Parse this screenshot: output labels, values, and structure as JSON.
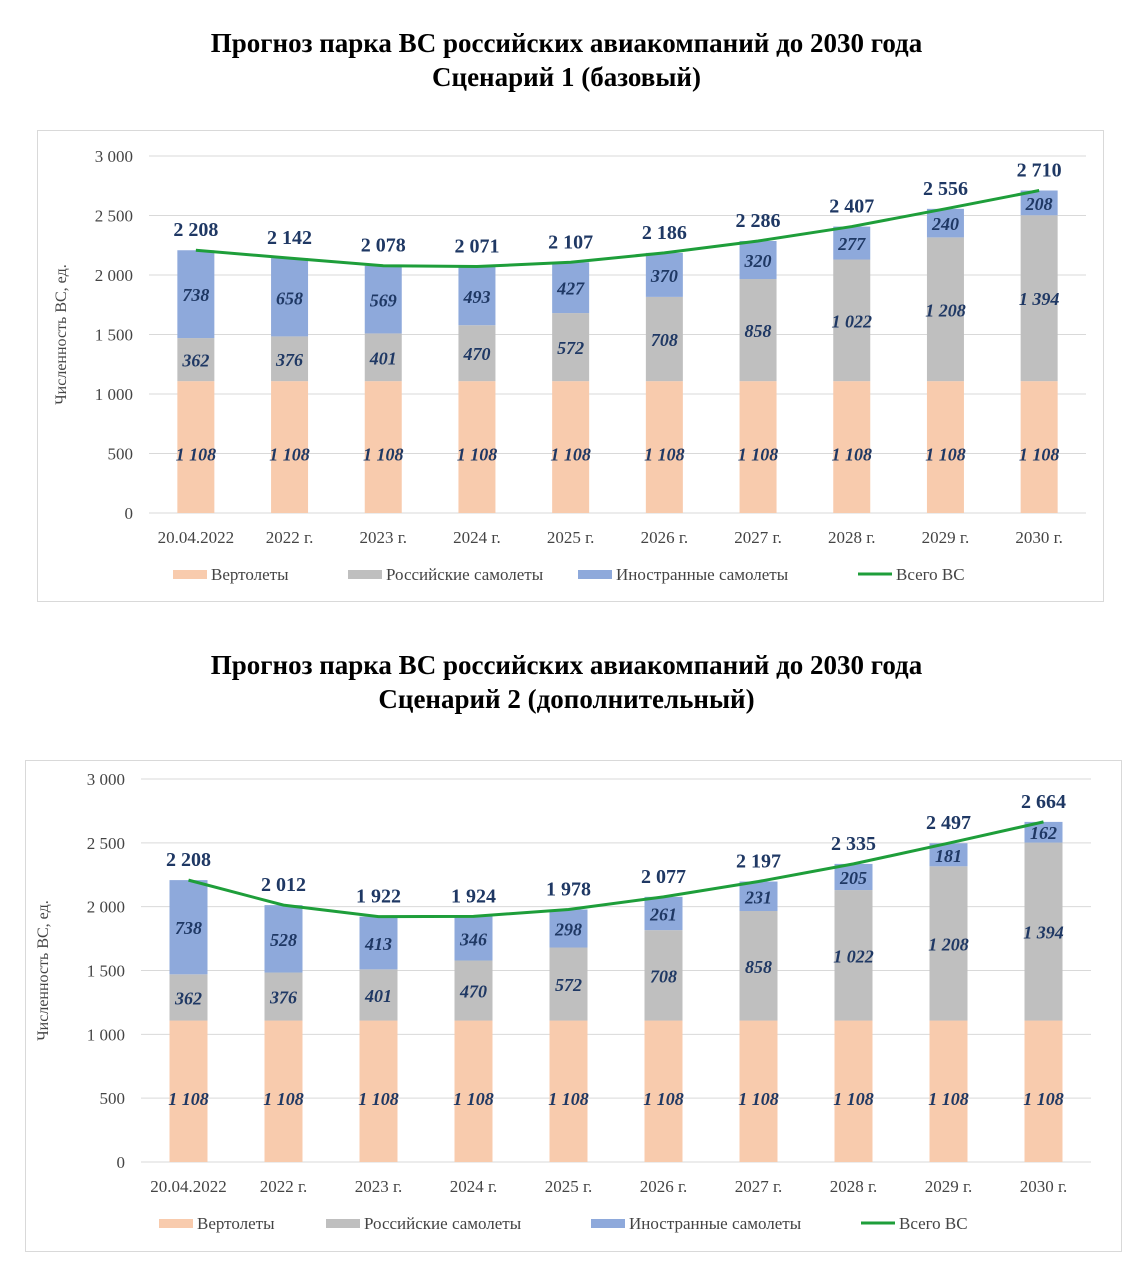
{
  "colors": {
    "helicopters": "#F8CBAD",
    "russian": "#BFBFBF",
    "foreign": "#8EA9DB",
    "total": "#1E9E3A",
    "labels": "#1F3864",
    "grid": "#D9D9D9"
  },
  "chart_data": [
    {
      "type": "bar",
      "stacked": true,
      "title": [
        "Прогноз парка ВС российских авиакомпаний до 2030 года",
        "Сценарий 1 (базовый)"
      ],
      "ylabel": "Численность ВС, ед.",
      "ylim": [
        0,
        3000
      ],
      "yticks": [
        "0",
        "500",
        "1 000",
        "1 500",
        "2 000",
        "2 500",
        "3 000"
      ],
      "categories": [
        "20.04.2022",
        "2022 г.",
        "2023 г.",
        "2024 г.",
        "2025 г.",
        "2026 г.",
        "2027 г.",
        "2028 г.",
        "2029 г.",
        "2030 г."
      ],
      "series": [
        {
          "name": "Вертолеты",
          "values": [
            1108,
            1108,
            1108,
            1108,
            1108,
            1108,
            1108,
            1108,
            1108,
            1108
          ]
        },
        {
          "name": "Российские самолеты",
          "values": [
            362,
            376,
            401,
            470,
            572,
            708,
            858,
            1022,
            1208,
            1394
          ]
        },
        {
          "name": "Иностранные самолеты",
          "values": [
            738,
            658,
            569,
            493,
            427,
            370,
            320,
            277,
            240,
            208
          ]
        },
        {
          "name": "Всего ВС",
          "type": "line",
          "values": [
            2208,
            2142,
            2078,
            2071,
            2107,
            2186,
            2286,
            2407,
            2556,
            2710
          ]
        }
      ],
      "legend": "bottom",
      "grid": true
    },
    {
      "type": "bar",
      "stacked": true,
      "title": [
        "Прогноз парка ВС российских авиакомпаний до 2030 года",
        "Сценарий 2 (дополнительный)"
      ],
      "ylabel": "Численность ВС, ед.",
      "ylim": [
        0,
        3000
      ],
      "yticks": [
        "0",
        "500",
        "1 000",
        "1 500",
        "2 000",
        "2 500",
        "3 000"
      ],
      "categories": [
        "20.04.2022",
        "2022 г.",
        "2023 г.",
        "2024 г.",
        "2025 г.",
        "2026 г.",
        "2027 г.",
        "2028 г.",
        "2029 г.",
        "2030 г."
      ],
      "series": [
        {
          "name": "Вертолеты",
          "values": [
            1108,
            1108,
            1108,
            1108,
            1108,
            1108,
            1108,
            1108,
            1108,
            1108
          ]
        },
        {
          "name": "Российские самолеты",
          "values": [
            362,
            376,
            401,
            470,
            572,
            708,
            858,
            1022,
            1208,
            1394
          ]
        },
        {
          "name": "Иностранные самолеты",
          "values": [
            738,
            528,
            413,
            346,
            298,
            261,
            231,
            205,
            181,
            162
          ]
        },
        {
          "name": "Всего ВС",
          "type": "line",
          "values": [
            2208,
            2012,
            1922,
            1924,
            1978,
            2077,
            2197,
            2335,
            2497,
            2664
          ]
        }
      ],
      "legend": "bottom",
      "grid": true
    }
  ]
}
